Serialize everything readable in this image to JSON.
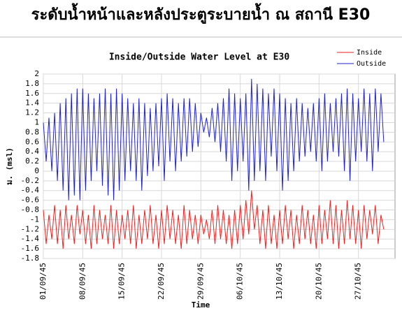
{
  "chart_data": {
    "type": "line",
    "heading": "ระดับน้ำหน้าและหลังประตูระบายน้ำ ณ สถานี E30",
    "title": "Inside/Outside Water Level at E30",
    "xlabel": "Time",
    "ylabel": "ม. (msl)",
    "x": [
      0,
      0.5,
      1,
      1.5,
      2,
      2.5,
      3,
      3.5,
      4,
      4.5,
      5,
      5.5,
      6,
      6.5,
      7,
      7.5,
      8,
      8.5,
      9,
      9.5,
      10,
      10.5,
      11,
      11.5,
      12,
      12.5,
      13,
      13.5,
      14,
      14.5,
      15,
      15.5,
      16,
      16.5,
      17,
      17.5,
      18,
      18.5,
      19,
      19.5,
      20,
      20.5,
      21,
      21.5,
      22,
      22.5,
      23,
      23.5,
      24,
      24.5,
      25,
      25.5,
      26,
      26.5,
      27,
      27.5,
      28,
      28.5,
      29,
      29.5,
      30,
      30.5,
      31,
      31.5,
      32,
      32.5,
      33,
      33.5,
      34,
      34.5,
      35,
      35.5,
      36,
      36.5,
      37,
      37.5,
      38,
      38.5,
      39,
      39.5,
      40,
      40.5,
      41,
      41.5,
      42,
      42.5,
      43,
      43.5,
      44,
      44.5,
      45,
      45.5,
      46,
      46.5,
      47,
      47.5,
      48,
      48.5,
      49,
      49.5,
      50,
      50.5,
      51,
      51.5,
      52,
      52.5,
      53,
      53.5,
      54,
      54.5,
      55,
      55.5,
      56,
      56.5,
      57,
      57.5,
      58,
      58.5,
      59,
      59.5,
      60,
      60.5
    ],
    "series": [
      {
        "name": "Inside",
        "color": "#ee2222",
        "values": [
          -0.8,
          -1.5,
          -0.9,
          -1.4,
          -0.7,
          -1.5,
          -0.8,
          -1.6,
          -0.7,
          -1.4,
          -0.9,
          -1.5,
          -0.7,
          -1.3,
          -0.8,
          -1.5,
          -0.9,
          -1.6,
          -0.7,
          -1.5,
          -0.8,
          -1.4,
          -0.9,
          -1.5,
          -0.7,
          -1.6,
          -0.8,
          -1.5,
          -0.9,
          -1.4,
          -0.8,
          -1.5,
          -0.7,
          -1.6,
          -0.9,
          -1.5,
          -0.8,
          -1.4,
          -0.7,
          -1.5,
          -0.9,
          -1.6,
          -0.8,
          -1.5,
          -0.7,
          -1.4,
          -0.8,
          -1.5,
          -0.9,
          -1.6,
          -0.7,
          -1.5,
          -0.8,
          -1.4,
          -0.9,
          -1.5,
          -0.9,
          -1.3,
          -1.0,
          -1.4,
          -0.8,
          -1.5,
          -0.7,
          -1.4,
          -0.8,
          -1.5,
          -0.9,
          -1.6,
          -0.8,
          -1.5,
          -0.7,
          -1.4,
          -0.6,
          -1.3,
          -0.4,
          -1.2,
          -0.7,
          -1.5,
          -0.8,
          -1.6,
          -0.7,
          -1.5,
          -0.9,
          -1.6,
          -0.8,
          -1.5,
          -0.7,
          -1.4,
          -0.8,
          -1.6,
          -0.9,
          -1.5,
          -0.7,
          -1.4,
          -0.8,
          -1.5,
          -0.9,
          -1.6,
          -0.7,
          -1.5,
          -0.8,
          -1.4,
          -0.6,
          -1.5,
          -0.7,
          -1.6,
          -0.8,
          -1.5,
          -0.6,
          -1.4,
          -0.7,
          -1.5,
          -0.8,
          -1.6,
          -0.7,
          -1.4,
          -0.8,
          -1.3,
          -0.7,
          -1.5,
          -0.9,
          -1.2
        ]
      },
      {
        "name": "Outside",
        "color": "#2222cc",
        "values": [
          1.0,
          0.2,
          1.1,
          0.0,
          1.2,
          -0.2,
          1.4,
          -0.4,
          1.5,
          -0.6,
          1.6,
          -0.5,
          1.7,
          -0.6,
          1.7,
          -0.4,
          1.6,
          -0.2,
          1.5,
          0.0,
          1.6,
          -0.3,
          1.7,
          -0.5,
          1.6,
          -0.6,
          1.7,
          -0.4,
          1.6,
          -0.2,
          1.5,
          0.0,
          1.4,
          -0.2,
          1.5,
          -0.4,
          1.4,
          -0.1,
          1.3,
          0.0,
          1.4,
          0.1,
          1.5,
          -0.2,
          1.6,
          0.2,
          1.5,
          0.0,
          1.4,
          0.2,
          1.5,
          0.3,
          1.5,
          0.4,
          1.4,
          0.5,
          1.2,
          0.8,
          1.1,
          0.7,
          1.3,
          0.6,
          1.4,
          0.4,
          1.5,
          0.2,
          1.7,
          -0.2,
          1.6,
          0.0,
          1.5,
          0.2,
          1.6,
          -0.4,
          1.9,
          -0.2,
          1.8,
          0.0,
          1.7,
          -0.2,
          1.6,
          0.3,
          1.7,
          0.0,
          1.6,
          -0.4,
          1.5,
          -0.2,
          1.4,
          0.0,
          1.5,
          0.2,
          1.4,
          0.3,
          1.3,
          0.4,
          1.4,
          0.2,
          1.5,
          0.0,
          1.6,
          0.2,
          1.4,
          0.4,
          1.5,
          0.3,
          1.6,
          0.0,
          1.7,
          -0.2,
          1.6,
          0.2,
          1.5,
          0.4,
          1.7,
          0.2,
          1.6,
          0.0,
          1.7,
          0.4,
          1.6,
          0.6
        ]
      }
    ],
    "xlim": [
      0,
      62.5
    ],
    "xticks": [
      {
        "value": 0,
        "label": "01/09/45"
      },
      {
        "value": 7,
        "label": "08/09/45"
      },
      {
        "value": 14,
        "label": "15/09/45"
      },
      {
        "value": 21,
        "label": "22/09/45"
      },
      {
        "value": 28,
        "label": "29/09/45"
      },
      {
        "value": 35,
        "label": "06/10/45"
      },
      {
        "value": 42,
        "label": "13/10/45"
      },
      {
        "value": 49,
        "label": "20/10/45"
      },
      {
        "value": 56,
        "label": "27/10/45"
      }
    ],
    "ylim": [
      -1.8,
      2
    ],
    "yticks": [
      -1.8,
      -1.6,
      -1.4,
      -1.2,
      -1,
      -0.8,
      -0.6,
      -0.4,
      -0.2,
      0,
      0.2,
      0.4,
      0.6,
      0.8,
      1,
      1.2,
      1.4,
      1.6,
      1.8,
      2
    ],
    "grid": true,
    "legend": "top-right"
  }
}
